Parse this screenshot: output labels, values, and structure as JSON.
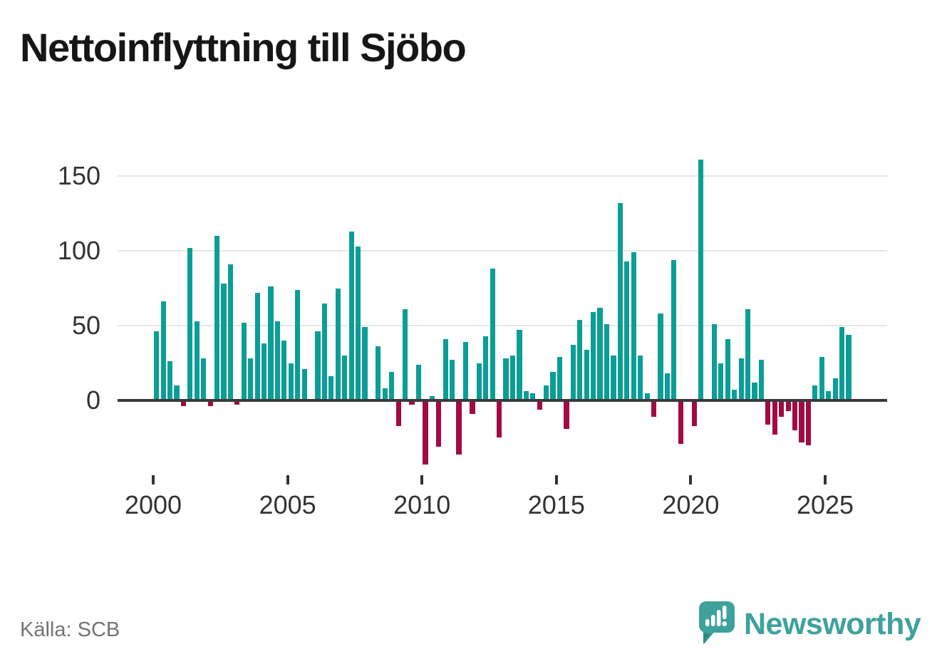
{
  "title": "Nettoinflyttning till Sjöbo",
  "source": "Källa: SCB",
  "branding": {
    "name": "Newsworthy"
  },
  "colors": {
    "positive": "#0a9e96",
    "negative": "#a20a44",
    "grid": "#e6e6e6",
    "zero_line": "#3a3a3a",
    "axis_text": "#333333",
    "title_text": "#161616",
    "source_text": "#747474",
    "brand": "#3ea29b"
  },
  "chart_data": {
    "type": "bar",
    "title": "Nettoinflyttning till Sjöbo",
    "xlabel": "",
    "ylabel": "",
    "grid": "horizontal",
    "legend": "none",
    "y_ticks": [
      0,
      50,
      100,
      150
    ],
    "x_tick_labels": [
      "2000",
      "2005",
      "2010",
      "2015",
      "2020",
      "2025"
    ],
    "ylim": [
      -50,
      165
    ],
    "frequency": "quarterly",
    "data": [
      {
        "year": 2000,
        "quarters": [
          46,
          66,
          26,
          10
        ]
      },
      {
        "year": 2001,
        "quarters": [
          -3,
          102,
          53,
          28
        ]
      },
      {
        "year": 2002,
        "quarters": [
          -3,
          110,
          78,
          91
        ]
      },
      {
        "year": 2003,
        "quarters": [
          -2,
          52,
          28,
          72
        ]
      },
      {
        "year": 2004,
        "quarters": [
          38,
          76,
          53,
          40
        ]
      },
      {
        "year": 2005,
        "quarters": [
          25,
          74,
          21,
          0
        ]
      },
      {
        "year": 2006,
        "quarters": [
          46,
          65,
          16,
          75
        ]
      },
      {
        "year": 2007,
        "quarters": [
          30,
          113,
          103,
          49
        ]
      },
      {
        "year": 2008,
        "quarters": [
          0,
          36,
          8,
          19
        ]
      },
      {
        "year": 2009,
        "quarters": [
          -16,
          61,
          -2,
          24
        ]
      },
      {
        "year": 2010,
        "quarters": [
          -42,
          3,
          -30,
          41
        ]
      },
      {
        "year": 2011,
        "quarters": [
          27,
          -35,
          39,
          -8
        ]
      },
      {
        "year": 2012,
        "quarters": [
          25,
          43,
          88,
          -24
        ]
      },
      {
        "year": 2013,
        "quarters": [
          28,
          30,
          47,
          6
        ]
      },
      {
        "year": 2014,
        "quarters": [
          5,
          -5,
          10,
          19
        ]
      },
      {
        "year": 2015,
        "quarters": [
          29,
          -18,
          37,
          54
        ]
      },
      {
        "year": 2016,
        "quarters": [
          34,
          59,
          62,
          51
        ]
      },
      {
        "year": 2017,
        "quarters": [
          30,
          132,
          93,
          99
        ]
      },
      {
        "year": 2018,
        "quarters": [
          30,
          5,
          -10,
          58
        ]
      },
      {
        "year": 2019,
        "quarters": [
          18,
          94,
          -28,
          0
        ]
      },
      {
        "year": 2020,
        "quarters": [
          -16,
          161,
          0,
          51
        ]
      },
      {
        "year": 2021,
        "quarters": [
          25,
          41,
          7,
          28
        ]
      },
      {
        "year": 2022,
        "quarters": [
          61,
          12,
          27,
          -15
        ]
      },
      {
        "year": 2023,
        "quarters": [
          -22,
          -10,
          -6,
          -19
        ]
      },
      {
        "year": 2024,
        "quarters": [
          -27,
          -29,
          10,
          29
        ]
      },
      {
        "year": 2025,
        "quarters": [
          6,
          15,
          49,
          44
        ]
      }
    ]
  }
}
